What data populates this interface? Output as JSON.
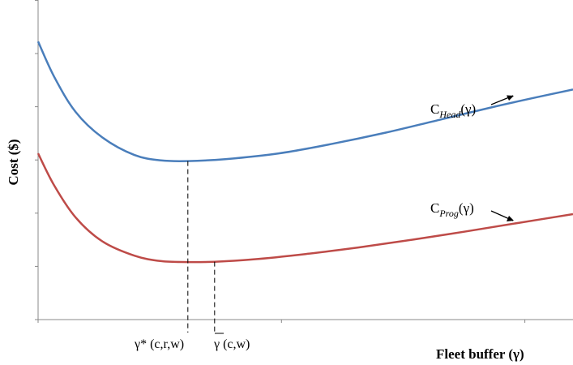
{
  "chart_data": {
    "type": "line",
    "title": "",
    "xlabel": "Fleet buffer (",
    "xlabel_symbol": "γ",
    "xlabel_close": ")",
    "ylabel": "Cost ($)",
    "grid": false,
    "legend": "none",
    "series": [
      {
        "label_main": "C",
        "label_sub": "Head",
        "label_arg": "(γ)",
        "color": "#4a7ebb",
        "points": [
          [
            0,
            0.87
          ],
          [
            0.03,
            0.76
          ],
          [
            0.07,
            0.65
          ],
          [
            0.12,
            0.57
          ],
          [
            0.18,
            0.515
          ],
          [
            0.23,
            0.498
          ],
          [
            0.28,
            0.496
          ],
          [
            0.35,
            0.502
          ],
          [
            0.45,
            0.52
          ],
          [
            0.55,
            0.55
          ],
          [
            0.65,
            0.585
          ],
          [
            0.75,
            0.625
          ],
          [
            0.85,
            0.665
          ],
          [
            0.93,
            0.695
          ],
          [
            1.0,
            0.72
          ]
        ]
      },
      {
        "label_main": "C",
        "label_sub": "Prog",
        "label_arg": "(γ)",
        "color": "#be4b48",
        "points": [
          [
            0,
            0.52
          ],
          [
            0.03,
            0.42
          ],
          [
            0.07,
            0.32
          ],
          [
            0.12,
            0.245
          ],
          [
            0.18,
            0.2
          ],
          [
            0.23,
            0.183
          ],
          [
            0.28,
            0.18
          ],
          [
            0.33,
            0.181
          ],
          [
            0.4,
            0.188
          ],
          [
            0.5,
            0.205
          ],
          [
            0.6,
            0.226
          ],
          [
            0.7,
            0.25
          ],
          [
            0.8,
            0.276
          ],
          [
            0.9,
            0.303
          ],
          [
            1.0,
            0.33
          ]
        ]
      }
    ],
    "markers": [
      {
        "text": "γ* (c,r,w)",
        "x": 0.28
      },
      {
        "text": "γ (c,w)",
        "x": 0.33
      }
    ]
  }
}
